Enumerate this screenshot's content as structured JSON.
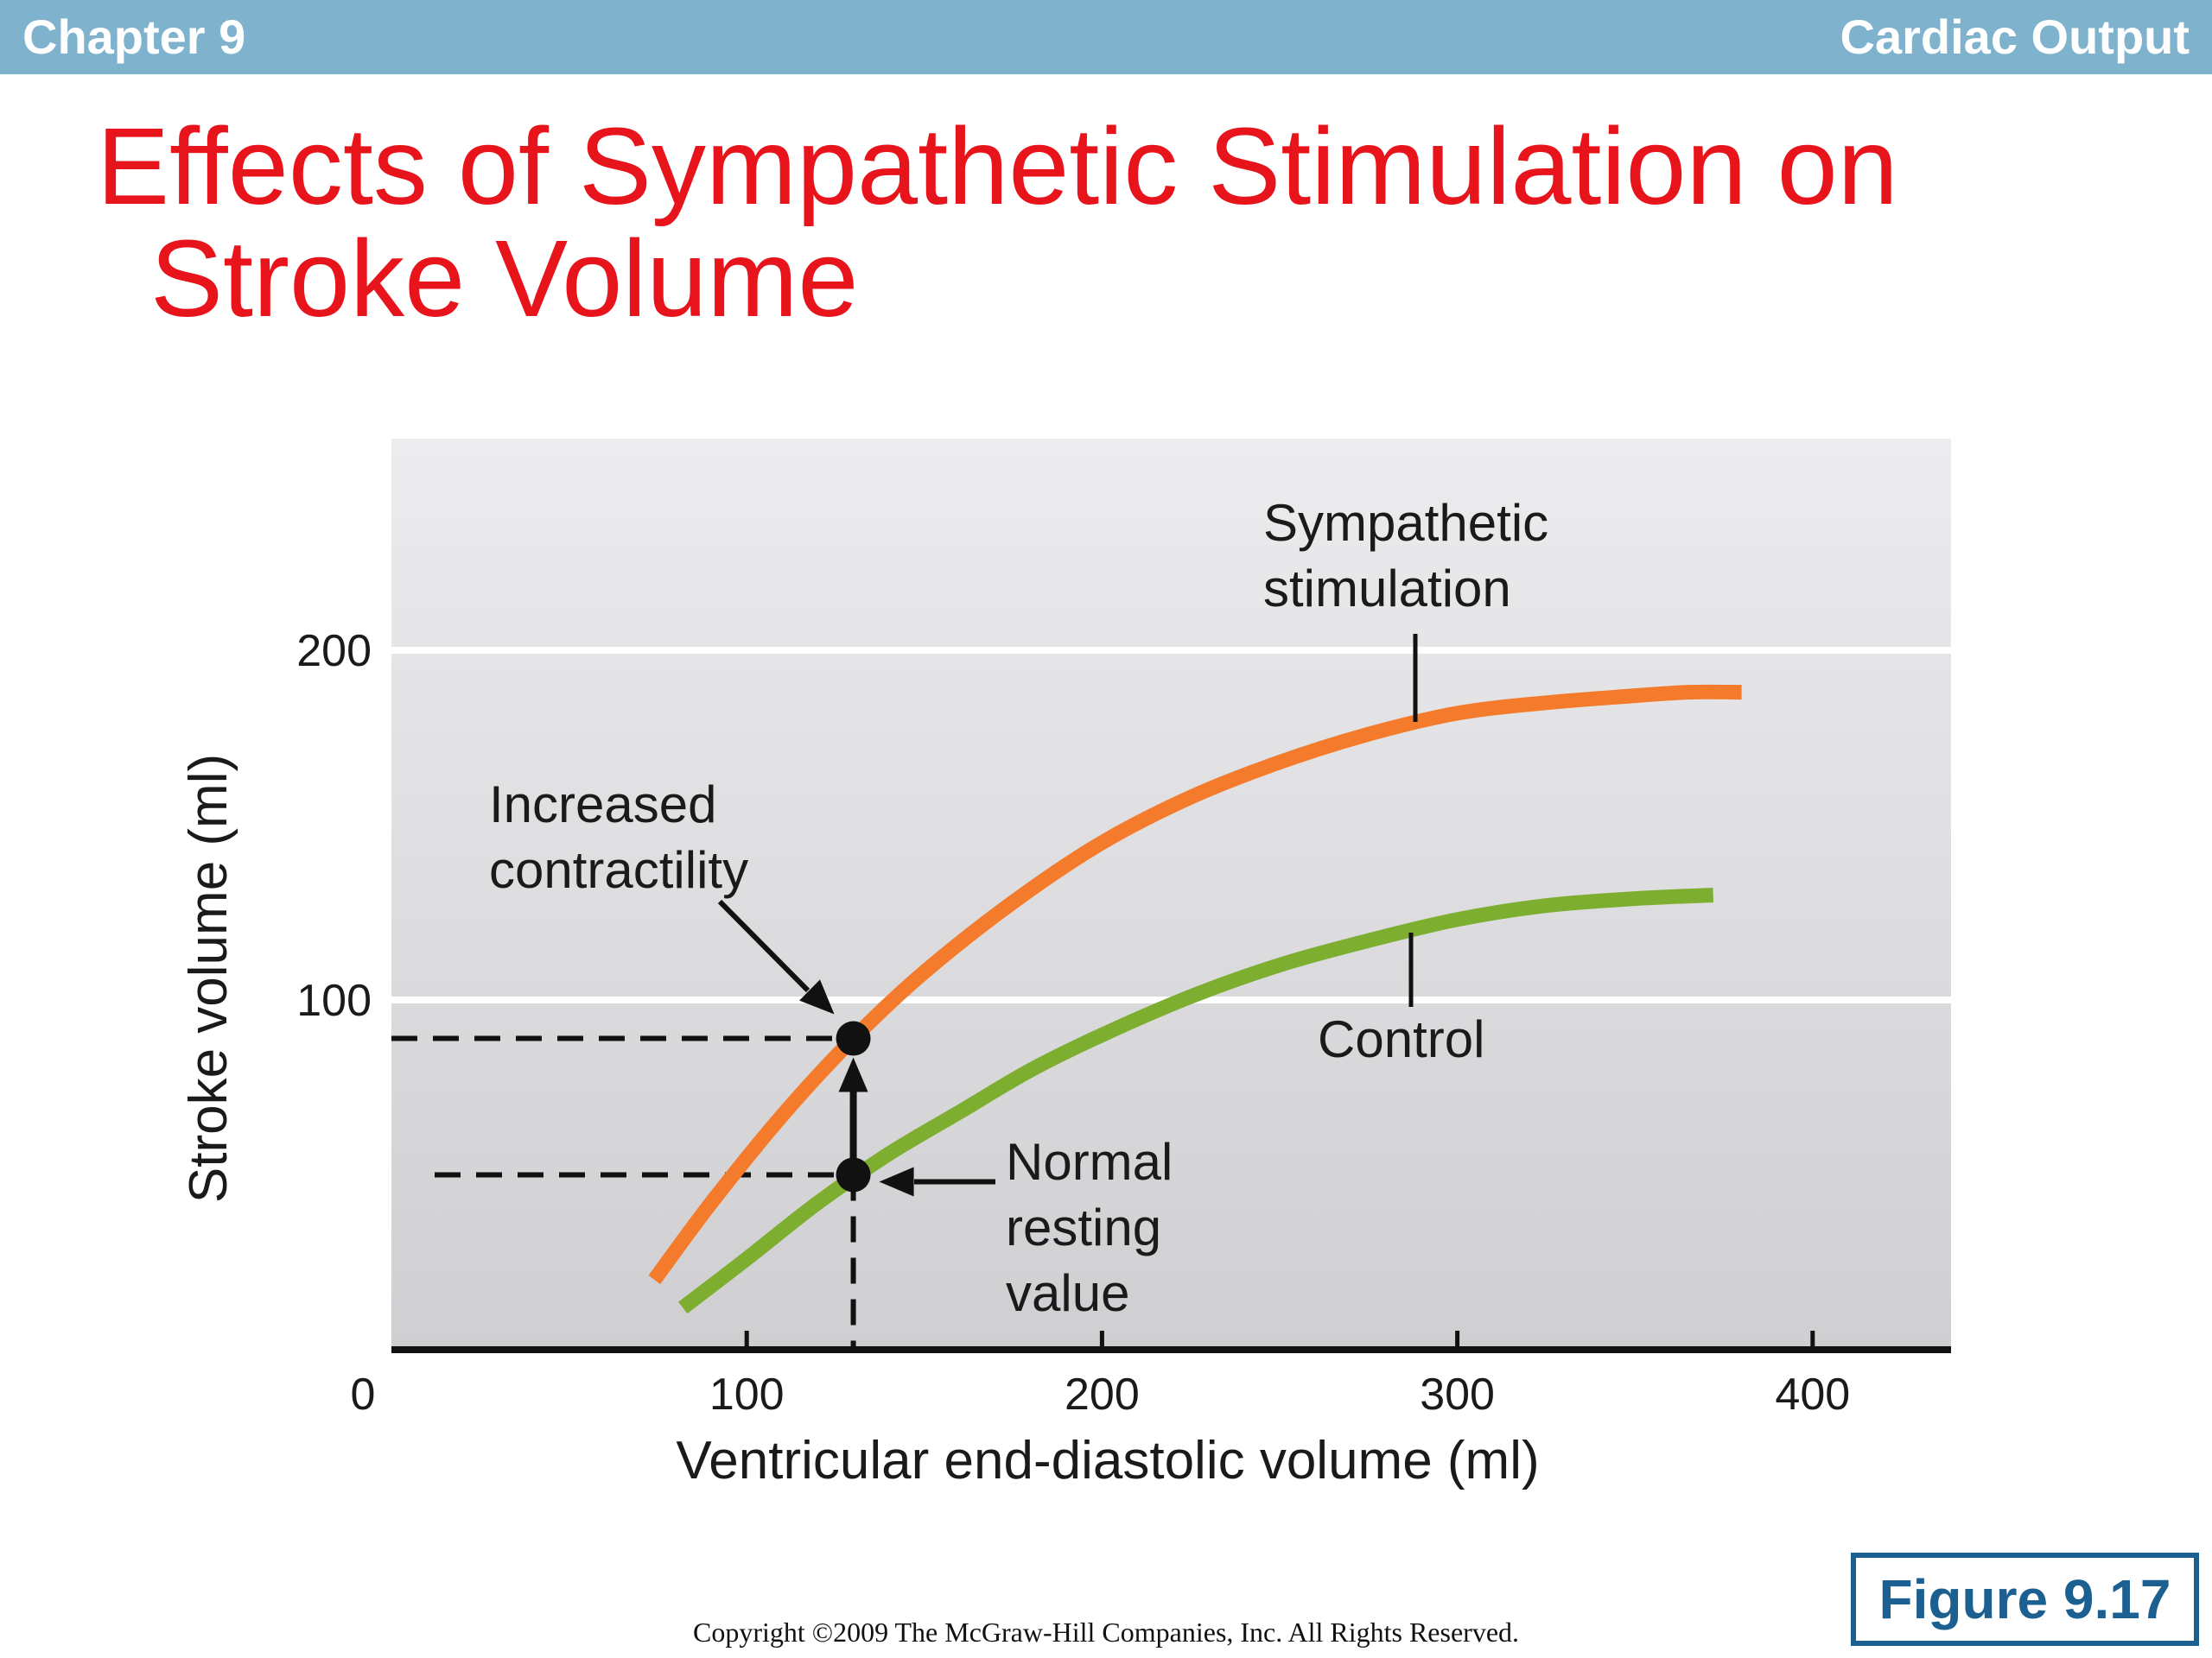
{
  "header": {
    "left": "Chapter 9",
    "right": "Cardiac Output"
  },
  "slide": {
    "title_line1": "Effects of Sympathetic Stimulation on",
    "title_line2": "Stroke Volume",
    "figure_label": "Figure 9.17",
    "copyright": "Copyright ©2009 The McGraw-Hill Companies, Inc. All Rights Reserved."
  },
  "colors": {
    "header_bar": "#7fb2cd",
    "title": "#e8141c",
    "sympathetic": "#f47b2c",
    "control": "#7dae30",
    "figure_badge": "#1c5f91",
    "plot_top": "#ececee",
    "plot_bottom": "#cfcfd2"
  },
  "chart_data": {
    "type": "line",
    "xlabel": "Ventricular end-diastolic volume (ml)",
    "ylabel": "Stroke volume (ml)",
    "xlim": [
      0,
      440
    ],
    "ylim": [
      0,
      260
    ],
    "x_ticks": [
      100,
      200,
      300,
      400
    ],
    "x_tick_labels": [
      "100",
      "200",
      "300",
      "400"
    ],
    "y_ticks": [
      100,
      200
    ],
    "y_tick_labels": [
      "100",
      "200"
    ],
    "origin_label": "0",
    "grid": "horizontal at y ticks",
    "series": [
      {
        "name": "Sympathetic stimulation",
        "color": "#f47b2c",
        "x": [
          74,
          90,
          110,
          130,
          150,
          175,
          200,
          225,
          250,
          275,
          300,
          325,
          350,
          365,
          380
        ],
        "y": [
          20,
          42,
          67,
          89,
          108,
          128,
          145,
          158,
          168,
          176,
          182,
          185,
          187,
          188,
          188
        ]
      },
      {
        "name": "Control",
        "color": "#7dae30",
        "x": [
          82,
          100,
          120,
          140,
          160,
          180,
          200,
          225,
          250,
          275,
          300,
          325,
          350,
          372
        ],
        "y": [
          12,
          26,
          42,
          56,
          68,
          80,
          90,
          101,
          110,
          117,
          123,
          127,
          129,
          130
        ]
      }
    ],
    "points": [
      {
        "name": "Normal resting value",
        "x": 130,
        "y": 50
      },
      {
        "name": "Increased contractility",
        "x": 130,
        "y": 89
      }
    ],
    "annotations": {
      "sympathetic_line1": "Sympathetic",
      "sympathetic_line2": "stimulation",
      "control": "Control",
      "increased_line1": "Increased",
      "increased_line2": "contractility",
      "normal_line1": "Normal",
      "normal_line2": "resting",
      "normal_line3": "value"
    }
  }
}
